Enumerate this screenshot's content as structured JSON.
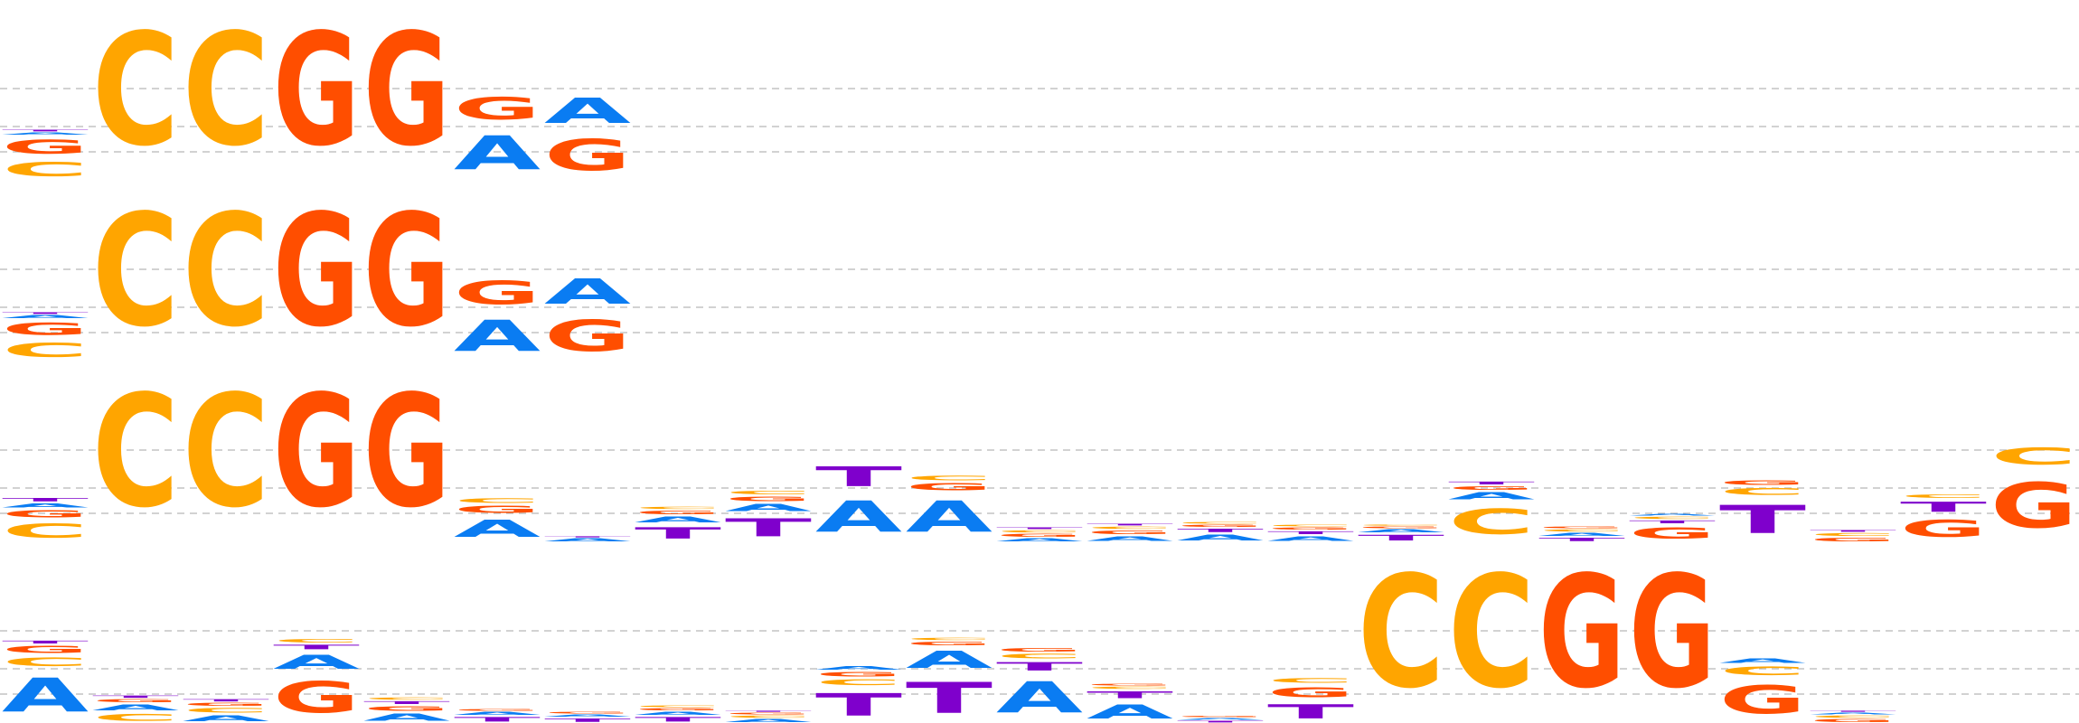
{
  "colors": {
    "A": "#0a7cf2",
    "C": "#ffa500",
    "G": "#ff4e00",
    "T": "#7f00cc",
    "grid": "#b8b8b8"
  },
  "logos": [
    {
      "columns": [
        [
          [
            "C",
            0.25
          ],
          [
            "G",
            0.25
          ],
          [
            "A",
            0.04
          ],
          [
            "T",
            0.03
          ]
        ],
        [
          [
            "C",
            2.0
          ]
        ],
        [
          [
            "C",
            2.0
          ]
        ],
        [
          [
            "G",
            2.0
          ]
        ],
        [
          [
            "G",
            2.0
          ]
        ],
        [
          [
            "A",
            0.6
          ],
          [
            "G",
            0.4
          ]
        ],
        [
          [
            "G",
            0.55
          ],
          [
            "A",
            0.45
          ]
        ]
      ]
    },
    {
      "columns": [
        [
          [
            "C",
            0.25
          ],
          [
            "G",
            0.22
          ],
          [
            "A",
            0.05
          ],
          [
            "T",
            0.03
          ]
        ],
        [
          [
            "C",
            2.0
          ]
        ],
        [
          [
            "C",
            2.0
          ]
        ],
        [
          [
            "G",
            2.0
          ]
        ],
        [
          [
            "G",
            2.0
          ]
        ],
        [
          [
            "A",
            0.55
          ],
          [
            "G",
            0.42
          ]
        ],
        [
          [
            "G",
            0.55
          ],
          [
            "A",
            0.45
          ]
        ]
      ]
    },
    {
      "columns": [
        [
          [
            "C",
            0.25
          ],
          [
            "G",
            0.12
          ],
          [
            "A",
            0.07
          ],
          [
            "T",
            0.06
          ]
        ],
        [
          [
            "C",
            2.0
          ]
        ],
        [
          [
            "C",
            2.0
          ]
        ],
        [
          [
            "G",
            2.0
          ]
        ],
        [
          [
            "G",
            2.0
          ]
        ],
        [
          [
            "A",
            0.3
          ],
          [
            "G",
            0.12
          ],
          [
            "C",
            0.08
          ]
        ],
        [
          [
            "A",
            0.05
          ],
          [
            "T",
            0.02
          ]
        ],
        [
          [
            "T",
            0.2
          ],
          [
            "A",
            0.1
          ],
          [
            "G",
            0.06
          ],
          [
            "C",
            0.04
          ]
        ],
        [
          [
            "T",
            0.32
          ],
          [
            "A",
            0.12
          ],
          [
            "G",
            0.08
          ],
          [
            "C",
            0.06
          ]
        ],
        [
          [
            "A",
            0.55
          ],
          [
            "T",
            0.35
          ]
        ],
        [
          [
            "A",
            0.55
          ],
          [
            "G",
            0.12
          ],
          [
            "C",
            0.08
          ]
        ],
        [
          [
            "A",
            0.05
          ],
          [
            "G",
            0.05
          ],
          [
            "C",
            0.04
          ],
          [
            "T",
            0.03
          ]
        ],
        [
          [
            "A",
            0.08
          ],
          [
            "G",
            0.06
          ],
          [
            "C",
            0.04
          ],
          [
            "T",
            0.03
          ]
        ],
        [
          [
            "A",
            0.1
          ],
          [
            "T",
            0.06
          ],
          [
            "G",
            0.04
          ],
          [
            "C",
            0.03
          ]
        ],
        [
          [
            "A",
            0.08
          ],
          [
            "T",
            0.05
          ],
          [
            "G",
            0.04
          ],
          [
            "C",
            0.03
          ]
        ],
        [
          [
            "T",
            0.1
          ],
          [
            "A",
            0.05
          ],
          [
            "G",
            0.03
          ],
          [
            "C",
            0.02
          ]
        ],
        [
          [
            "C",
            0.45
          ],
          [
            "A",
            0.12
          ],
          [
            "G",
            0.06
          ],
          [
            "T",
            0.05
          ]
        ],
        [
          [
            "T",
            0.06
          ],
          [
            "A",
            0.05
          ],
          [
            "C",
            0.04
          ],
          [
            "G",
            0.03
          ]
        ],
        [
          [
            "G",
            0.2
          ],
          [
            "T",
            0.05
          ],
          [
            "C",
            0.04
          ],
          [
            "A",
            0.03
          ]
        ],
        [
          [
            "T",
            0.5
          ],
          [
            "C",
            0.12
          ],
          [
            "G",
            0.08
          ]
        ],
        [
          [
            "G",
            0.06
          ],
          [
            "C",
            0.05
          ],
          [
            "T",
            0.03
          ]
        ],
        [
          [
            "G",
            0.3
          ],
          [
            "T",
            0.18
          ],
          [
            "C",
            0.06
          ]
        ],
        [
          [
            "G",
            0.8
          ],
          [
            "C",
            0.3
          ]
        ]
      ]
    },
    {
      "columns": [
        [
          [
            "A",
            0.6
          ],
          [
            "C",
            0.15
          ],
          [
            "G",
            0.12
          ],
          [
            "T",
            0.05
          ]
        ],
        [
          [
            "C",
            0.12
          ],
          [
            "A",
            0.1
          ],
          [
            "G",
            0.05
          ],
          [
            "T",
            0.04
          ]
        ],
        [
          [
            "A",
            0.1
          ],
          [
            "C",
            0.08
          ],
          [
            "G",
            0.05
          ],
          [
            "T",
            0.04
          ]
        ],
        [
          [
            "G",
            0.55
          ],
          [
            "A",
            0.25
          ],
          [
            "T",
            0.08
          ],
          [
            "C",
            0.06
          ]
        ],
        [
          [
            "A",
            0.12
          ],
          [
            "G",
            0.08
          ],
          [
            "T",
            0.05
          ],
          [
            "C",
            0.04
          ]
        ],
        [
          [
            "T",
            0.08
          ],
          [
            "A",
            0.05
          ],
          [
            "G",
            0.03
          ]
        ],
        [
          [
            "T",
            0.06
          ],
          [
            "A",
            0.04
          ],
          [
            "G",
            0.03
          ]
        ],
        [
          [
            "T",
            0.08
          ],
          [
            "A",
            0.05
          ],
          [
            "G",
            0.04
          ],
          [
            "C",
            0.03
          ]
        ],
        [
          [
            "A",
            0.05
          ],
          [
            "C",
            0.04
          ],
          [
            "G",
            0.03
          ],
          [
            "T",
            0.02
          ]
        ],
        [
          [
            "T",
            0.4
          ],
          [
            "C",
            0.1
          ],
          [
            "G",
            0.08
          ],
          [
            "A",
            0.06
          ]
        ],
        [
          [
            "T",
            0.55
          ],
          [
            "A",
            0.3
          ],
          [
            "G",
            0.06
          ],
          [
            "C",
            0.04
          ]
        ],
        [
          [
            "A",
            0.55
          ],
          [
            "T",
            0.15
          ],
          [
            "C",
            0.08
          ],
          [
            "G",
            0.06
          ]
        ],
        [
          [
            "A",
            0.25
          ],
          [
            "T",
            0.12
          ],
          [
            "C",
            0.04
          ],
          [
            "G",
            0.03
          ]
        ],
        [
          [
            "T",
            0.03
          ],
          [
            "A",
            0.03
          ],
          [
            "G",
            0.02
          ]
        ],
        [
          [
            "T",
            0.25
          ],
          [
            "G",
            0.18
          ],
          [
            "C",
            0.08
          ]
        ],
        [
          [
            "C",
            2.0
          ]
        ],
        [
          [
            "C",
            2.0
          ]
        ],
        [
          [
            "G",
            2.0
          ]
        ],
        [
          [
            "G",
            2.0
          ]
        ],
        [
          [
            "G",
            0.5
          ],
          [
            "C",
            0.15
          ],
          [
            "A",
            0.08
          ]
        ],
        [
          [
            "G",
            0.05
          ],
          [
            "C",
            0.04
          ],
          [
            "A",
            0.03
          ],
          [
            "T",
            0.02
          ]
        ]
      ]
    }
  ]
}
